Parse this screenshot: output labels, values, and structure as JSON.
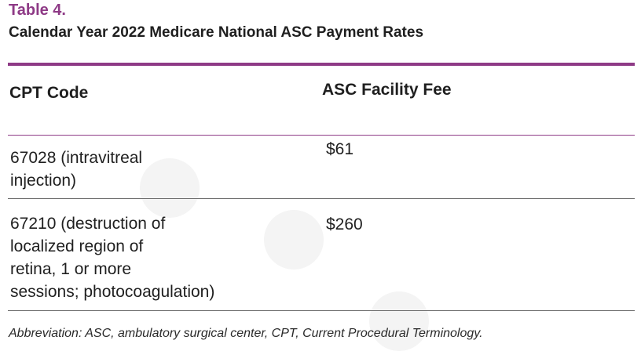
{
  "table": {
    "label": "Table 4.",
    "title": "Calendar Year 2022 Medicare National ASC Payment Rates",
    "headers": {
      "cpt_code": "CPT Code",
      "facility_fee": "ASC Facility Fee"
    },
    "rows": [
      {
        "cpt_code_lines": [
          "67028 (intravitreal",
          "injection)"
        ],
        "facility_fee": "$61"
      },
      {
        "cpt_code_lines": [
          "67210 (destruction of",
          "localized region of",
          "retina, 1 or more",
          "sessions; photocoagulation)"
        ],
        "facility_fee": "$260"
      }
    ],
    "footnote": "Abbreviation: ASC, ambulatory surgical center, CPT, Current Procedural Terminology."
  },
  "colors": {
    "accent": "#8e3a86",
    "text": "#1f1f1f",
    "rule": "#6b6b6b"
  }
}
